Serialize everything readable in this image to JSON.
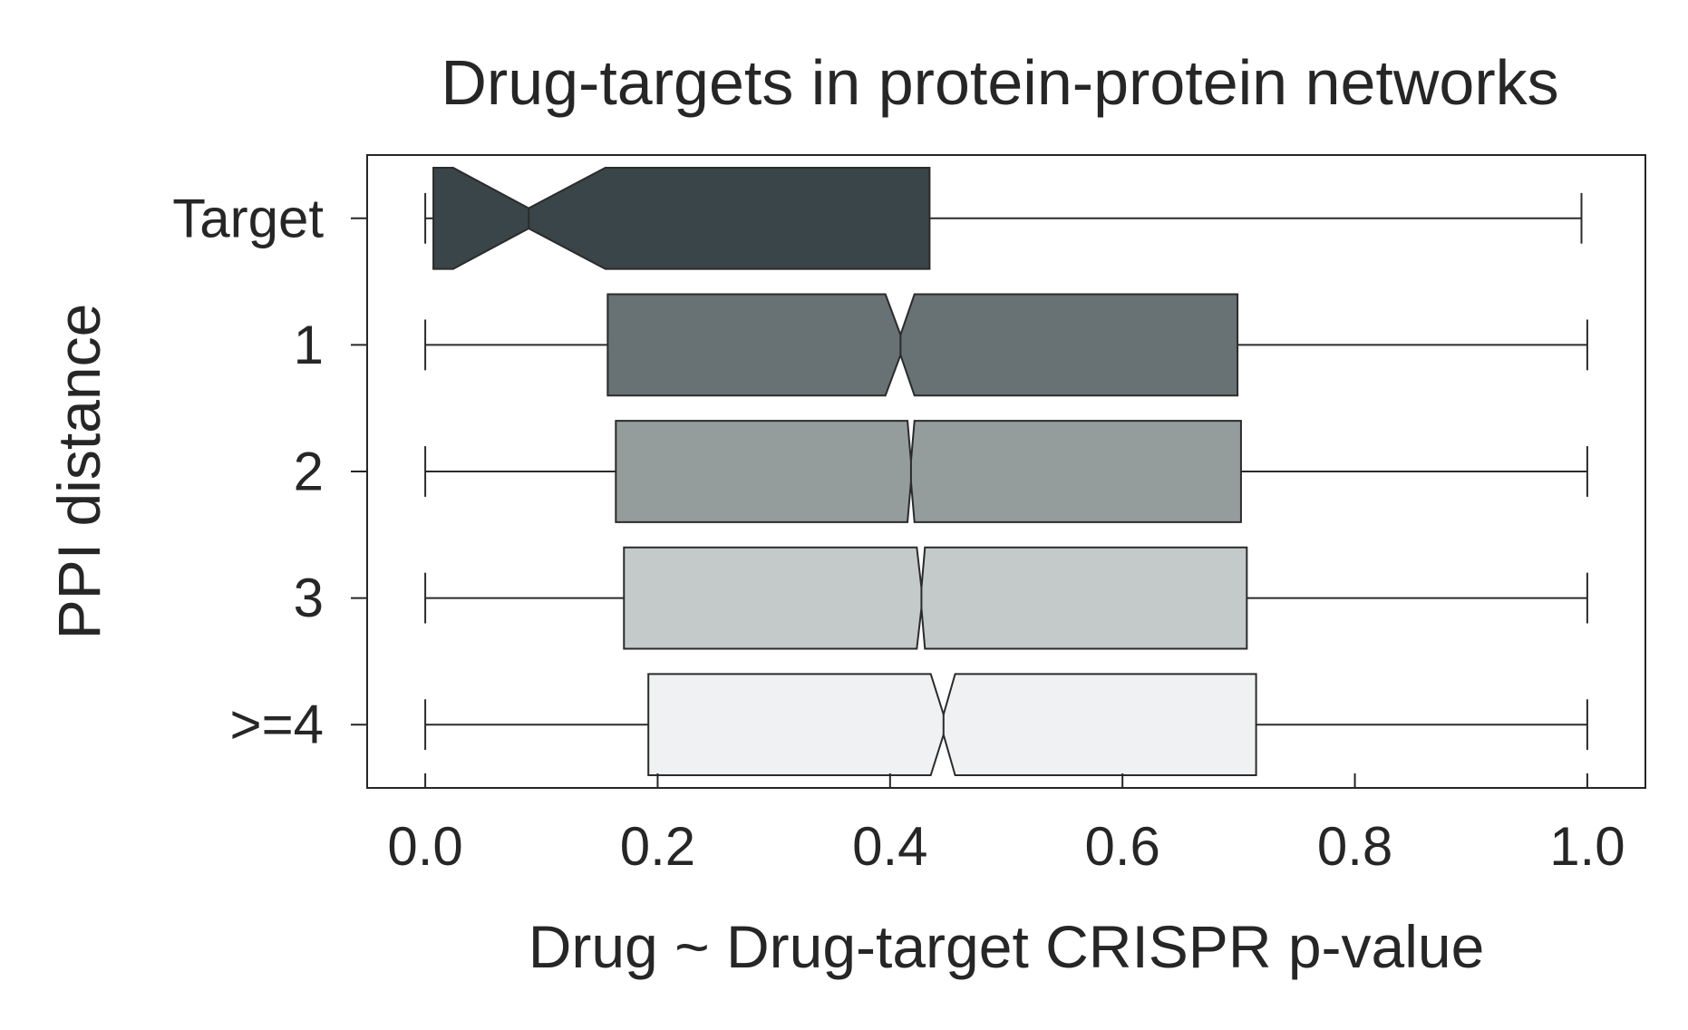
{
  "chart_data": {
    "type": "boxplot",
    "orientation": "horizontal",
    "notched": true,
    "title": "Drug-targets in protein-protein networks",
    "xlabel": "Drug ~ Drug-target CRISPR p-value",
    "ylabel": "PPI distance",
    "xlim": [
      -0.05,
      1.05
    ],
    "xticks": [
      0.0,
      0.2,
      0.4,
      0.6,
      0.8,
      1.0
    ],
    "xtick_labels": [
      "0.0",
      "0.2",
      "0.4",
      "0.6",
      "0.8",
      "1.0"
    ],
    "categories": [
      "Target",
      "1",
      "2",
      "3",
      ">=4"
    ],
    "grid": false,
    "boxes": [
      {
        "category": "Target",
        "whisker_low": 0.0,
        "q1": 0.007,
        "median": 0.089,
        "q3": 0.434,
        "whisker_high": 0.995,
        "notch_low": 0.024,
        "notch_high": 0.155,
        "color": "#3A4549"
      },
      {
        "category": "1",
        "whisker_low": 0.0,
        "q1": 0.157,
        "median": 0.409,
        "q3": 0.699,
        "whisker_high": 1.0,
        "notch_low": 0.396,
        "notch_high": 0.421,
        "color": "#687173"
      },
      {
        "category": "2",
        "whisker_low": 0.0,
        "q1": 0.164,
        "median": 0.418,
        "q3": 0.702,
        "whisker_high": 1.0,
        "notch_low": 0.415,
        "notch_high": 0.421,
        "color": "#959C9C"
      },
      {
        "category": "3",
        "whisker_low": 0.0,
        "q1": 0.171,
        "median": 0.427,
        "q3": 0.707,
        "whisker_high": 1.0,
        "notch_low": 0.423,
        "notch_high": 0.43,
        "color": "#C4CACA"
      },
      {
        "category": ">=4",
        "whisker_low": 0.0,
        "q1": 0.192,
        "median": 0.446,
        "q3": 0.715,
        "whisker_high": 1.0,
        "notch_low": 0.435,
        "notch_high": 0.456,
        "color": "#F0F1F2"
      }
    ],
    "colors": {
      "text": "#262626",
      "axis": "#262626",
      "edge": "#2B2B2B"
    }
  }
}
